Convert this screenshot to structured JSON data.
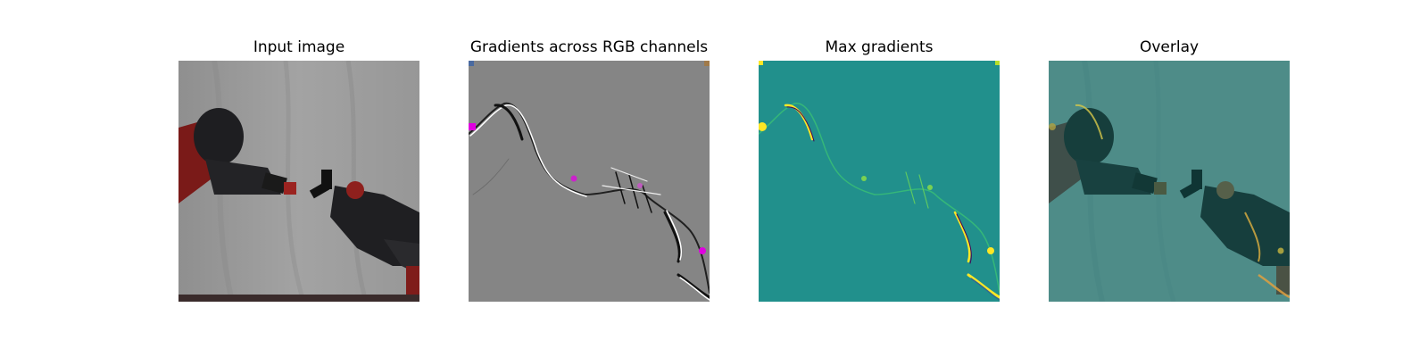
{
  "panels": [
    {
      "title": "Input image"
    },
    {
      "title": "Gradients across RGB channels"
    },
    {
      "title": "Max gradients"
    },
    {
      "title": "Overlay"
    }
  ],
  "colors": {
    "background_gray": "#9a9a9a",
    "gradient_gray": "#858585",
    "teal": "#21908c",
    "overlay_teal": "#4a8a86",
    "robot_dark": "#1f1f22",
    "robot_red": "#8a1f1c",
    "highlight_yellow": "#fde725",
    "highlight_magenta": "#e000e0"
  }
}
